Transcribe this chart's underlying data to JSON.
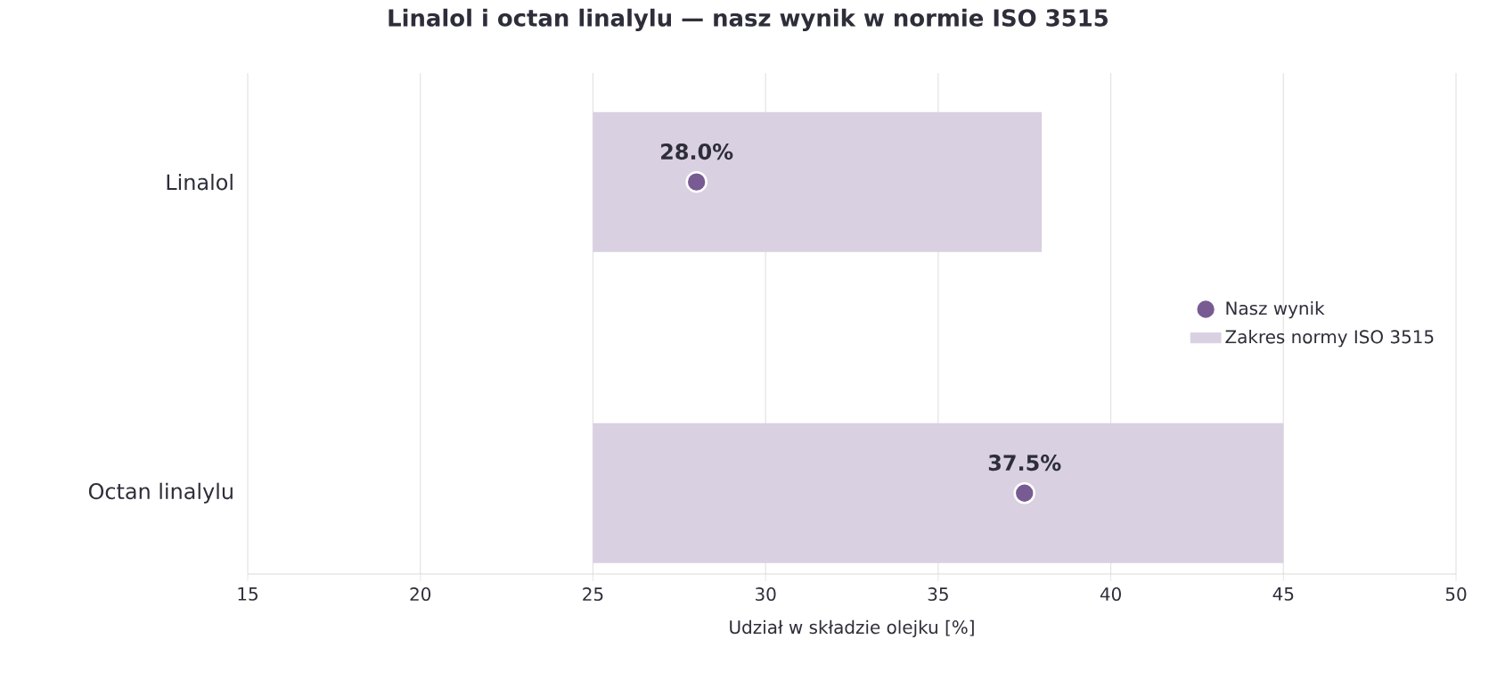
{
  "chart_data": {
    "type": "bar",
    "orientation": "horizontal",
    "title": "Linalol i octan linalylu — nasz wynik w normie ISO 3515",
    "xlabel": "Udział w składzie olejku [%]",
    "categories": [
      "Linalol",
      "Octan linalylu"
    ],
    "series": [
      {
        "name": "Nasz wynik",
        "type": "scatter",
        "values": [
          28.0,
          37.5
        ],
        "value_labels": [
          "28.0%",
          "37.5%"
        ],
        "color": "#775b92"
      },
      {
        "name": "Zakres normy ISO 3515",
        "type": "bar",
        "base": [
          25,
          25
        ],
        "values": [
          13,
          20
        ],
        "color": "#d9d0e1"
      }
    ],
    "xlim": [
      15,
      50
    ],
    "xticks": [
      15,
      20,
      25,
      30,
      35,
      40,
      45,
      50
    ],
    "grid": "x",
    "legend": "right",
    "marker": "circle"
  }
}
